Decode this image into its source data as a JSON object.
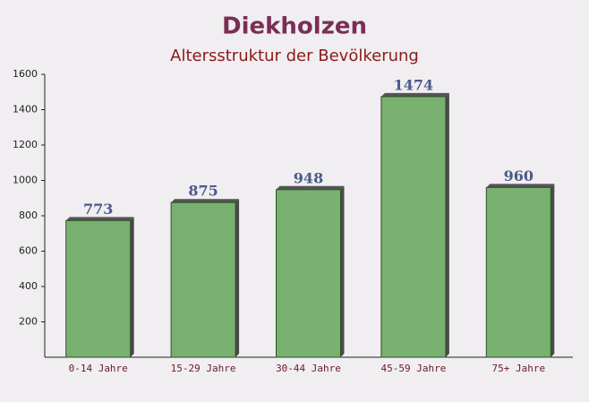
{
  "chart_data": {
    "type": "bar",
    "title": "Diekholzen",
    "subtitle": "Altersstruktur der Bevölkerung",
    "categories": [
      "0-14 Jahre",
      "15-29 Jahre",
      "30-44 Jahre",
      "45-59 Jahre",
      "75+ Jahre"
    ],
    "values": [
      773,
      875,
      948,
      1474,
      960
    ],
    "color": "#6aa860",
    "ylim": [
      0,
      1600
    ],
    "yticks": [
      200,
      400,
      600,
      800,
      1000,
      1200,
      1400,
      1600
    ]
  }
}
